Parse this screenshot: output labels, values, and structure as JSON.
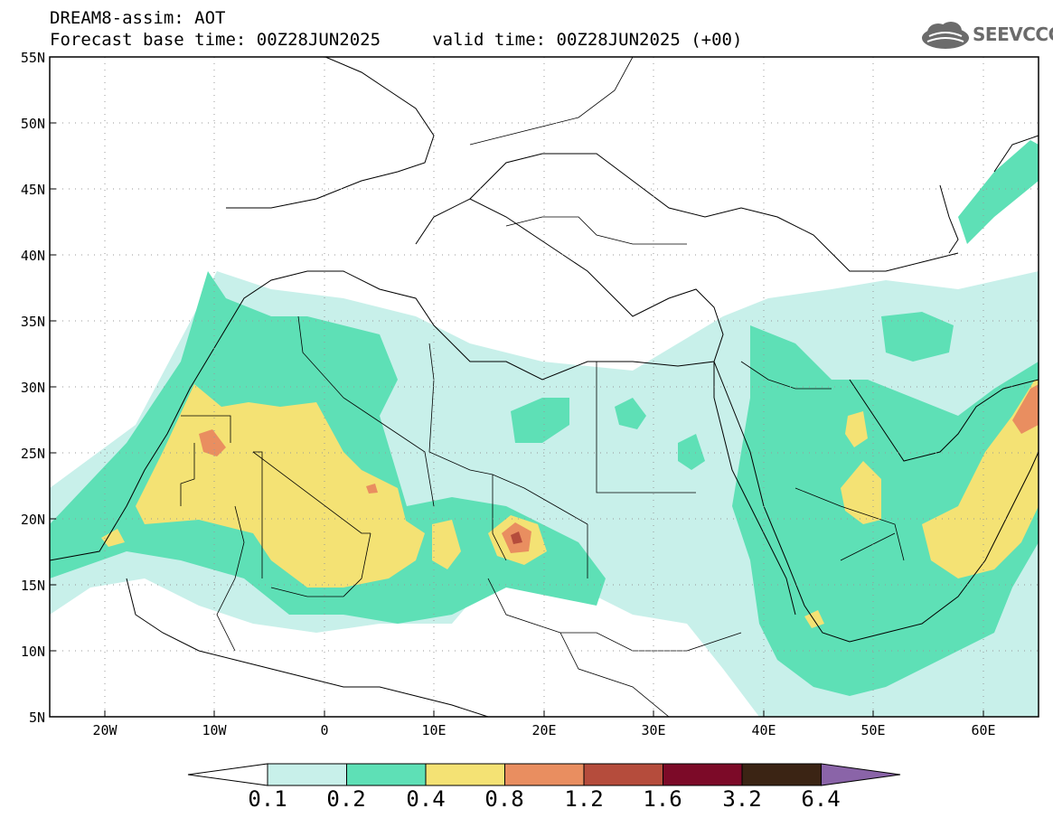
{
  "header": {
    "title_line1": "DREAM8-assim: AOT",
    "title_line2": "Forecast base time: 00Z28JUN2025     valid time: 00Z28JUN2025 (+00)"
  },
  "logo": {
    "icon": "cloud-icon",
    "text": "SEEVCCC"
  },
  "map": {
    "lat_labels": [
      "55N",
      "50N",
      "45N",
      "40N",
      "35N",
      "30N",
      "25N",
      "20N",
      "15N",
      "10N",
      "5N"
    ],
    "lon_labels": [
      "20W",
      "10W",
      "0",
      "10E",
      "20E",
      "30E",
      "40E",
      "50E",
      "60E"
    ],
    "extent": {
      "lon_min": -25,
      "lon_max": 65,
      "lat_min": 5,
      "lat_max": 55
    },
    "gridlines": "dotted"
  },
  "colorbar": {
    "labels": [
      "0.1",
      "0.2",
      "0.4",
      "0.8",
      "1.2",
      "1.6",
      "3.2",
      "6.4"
    ],
    "colors": [
      "#c8f0ea",
      "#5ee0b6",
      "#f4e274",
      "#e98e60",
      "#b54c3c",
      "#7c0a28",
      "#3b2414",
      "#8a64a8"
    ],
    "under_color": "#ffffff"
  }
}
